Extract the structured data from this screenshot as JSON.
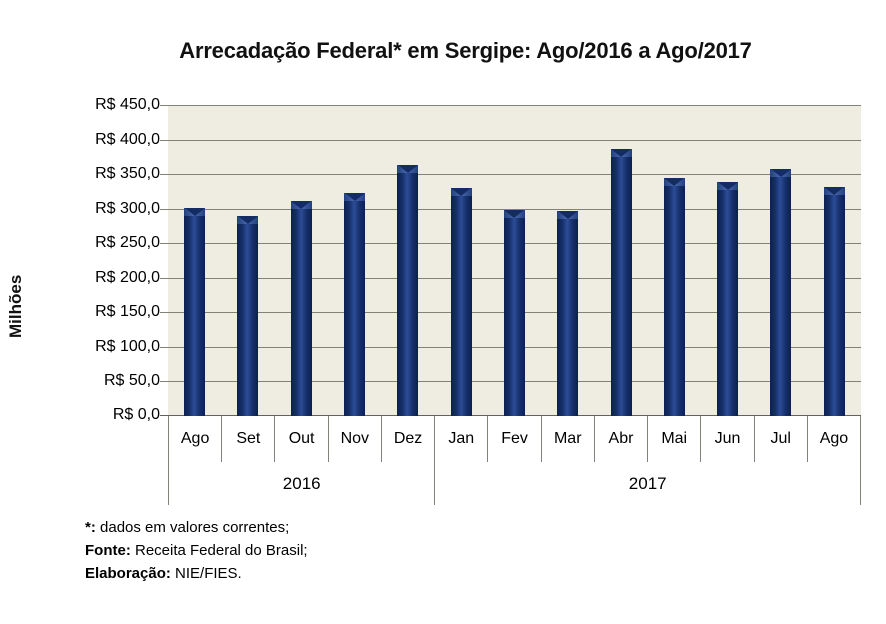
{
  "title": "Arrecadação Federal* em Sergipe: Ago/2016 a Ago/2017",
  "chart_data": {
    "type": "bar",
    "title": "Arrecadação Federal* em Sergipe: Ago/2016 a Ago/2017",
    "ylabel": "Milhões",
    "xlabel": "",
    "ylim": [
      0,
      450
    ],
    "y_tick_step": 50,
    "y_tick_labels": [
      "R$ 450,0",
      "R$ 400,0",
      "R$ 350,0",
      "R$ 300,0",
      "R$ 250,0",
      "R$ 200,0",
      "R$ 150,0",
      "R$ 100,0",
      "R$ 50,0",
      "R$ 0,0"
    ],
    "categories": [
      "Ago",
      "Set",
      "Out",
      "Nov",
      "Dez",
      "Jan",
      "Fev",
      "Mar",
      "Abr",
      "Mai",
      "Jun",
      "Jul",
      "Ago"
    ],
    "values": [
      301,
      289,
      311,
      322,
      363,
      330,
      298,
      297,
      386,
      345,
      339,
      357,
      332
    ],
    "year_groups": [
      {
        "label": "2016",
        "span": 5
      },
      {
        "label": "2017",
        "span": 8
      }
    ],
    "grid": true,
    "legend": false,
    "bar_color": "#16306b",
    "plot_bg_color": "#efede2",
    "gridline_color": "#82827a"
  },
  "footnotes": [
    {
      "label": "*:",
      "text": " dados em valores correntes;"
    },
    {
      "label": "Fonte:",
      "text": " Receita Federal do Brasil;"
    },
    {
      "label": "Elaboração:",
      "text": " NIE/FIES."
    }
  ]
}
